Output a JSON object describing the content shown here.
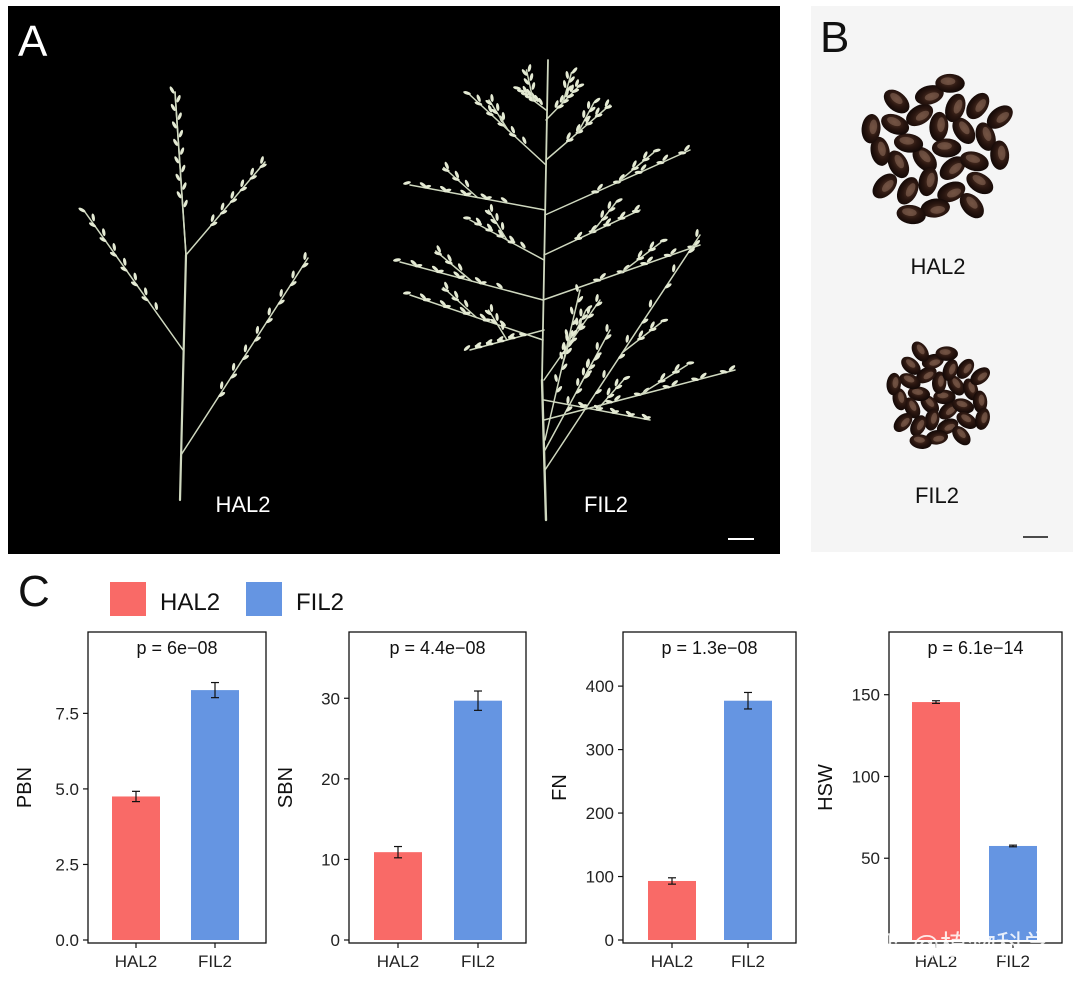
{
  "panels": {
    "a": {
      "letter": "A",
      "labels": [
        "HAL2",
        "FIL2"
      ]
    },
    "b": {
      "letter": "B",
      "labels": [
        "HAL2",
        "FIL2"
      ]
    },
    "c": {
      "letter": "C"
    }
  },
  "colors": {
    "HAL2": "#f96a67",
    "FIL2": "#6595e2",
    "photo_bg": "#000000",
    "seed_bg": "#f5f5f5"
  },
  "legend": [
    "HAL2",
    "FIL2"
  ],
  "watermark": "知乎 @植物科学",
  "chart_data": [
    {
      "type": "bar",
      "ylabel": "PBN",
      "annotation": "p = 6e−08",
      "categories": [
        "HAL2",
        "FIL2"
      ],
      "values": [
        4.75,
        8.27
      ],
      "errors": [
        0.17,
        0.25
      ],
      "ylim": [
        0,
        9.2
      ],
      "ticks": [
        0,
        2.5,
        5,
        7.5
      ],
      "tick_labels": [
        "0.0",
        "2.5",
        "5.0",
        "7.5"
      ]
    },
    {
      "type": "bar",
      "ylabel": "SBN",
      "annotation": "p = 4.4e−08",
      "categories": [
        "HAL2",
        "FIL2"
      ],
      "values": [
        10.9,
        29.7
      ],
      "errors": [
        0.7,
        1.2
      ],
      "ylim": [
        0,
        34.5
      ],
      "ticks": [
        0,
        10,
        20,
        30
      ],
      "tick_labels": [
        "0",
        "10",
        "20",
        "30"
      ]
    },
    {
      "type": "bar",
      "ylabel": "FN",
      "annotation": "p = 1.3e−08",
      "categories": [
        "HAL2",
        "FIL2"
      ],
      "values": [
        93,
        377
      ],
      "errors": [
        5,
        13
      ],
      "ylim": [
        0,
        438
      ],
      "ticks": [
        0,
        100,
        200,
        300,
        400
      ],
      "tick_labels": [
        "0",
        "100",
        "200",
        "300",
        "400"
      ]
    },
    {
      "type": "bar",
      "ylabel": "HSW",
      "annotation": "p = 6.1e−14",
      "categories": [
        "HAL2",
        "FIL2"
      ],
      "values": [
        145.5,
        57.5
      ],
      "errors": [
        0.8,
        0.5
      ],
      "ylim": [
        0,
        170
      ],
      "ticks": [
        50,
        100,
        150
      ],
      "tick_labels": [
        "50",
        "100",
        "150"
      ]
    }
  ]
}
